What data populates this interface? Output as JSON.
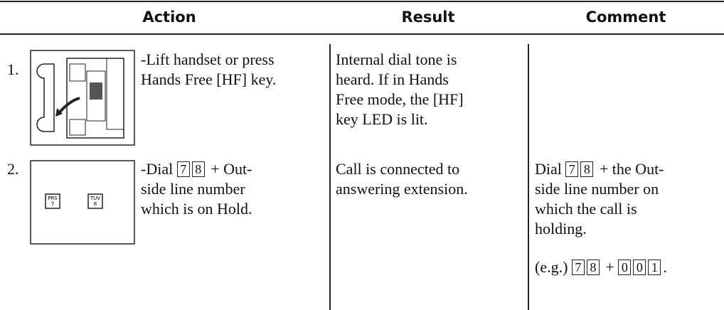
{
  "header": {
    "columns": [
      "Action",
      "Result",
      "Comment"
    ]
  },
  "rows": [
    {
      "number": "1.",
      "action": [
        [
          "-Lift handset or press"
        ],
        [
          "Hands Free [HF] key."
        ]
      ],
      "result": [
        [
          "Internal dial tone is"
        ],
        [
          "heard. If in Hands"
        ],
        [
          "Free mode, the [HF]"
        ],
        [
          "key LED is lit."
        ]
      ]
    },
    {
      "number": "2.",
      "icon_keys": [
        {
          "letters": "PRS",
          "digit": "7"
        },
        {
          "letters": "TUV",
          "digit": "8"
        }
      ],
      "action": [
        [
          "-Dial ",
          {
            "key": "7"
          },
          {
            "key": "8"
          },
          " + Out-"
        ],
        [
          "side line number"
        ],
        [
          "which is on Hold."
        ]
      ],
      "result": [
        [
          "Call is connected to"
        ],
        [
          "answering extension."
        ]
      ],
      "comment": [
        [
          "Dial ",
          {
            "key": "7"
          },
          {
            "key": "8"
          },
          " + the Out-"
        ],
        [
          "side line number on"
        ],
        [
          "which the call is"
        ],
        [
          "holding."
        ],
        [
          "(e.g.) ",
          {
            "key": "7"
          },
          {
            "key": "8"
          },
          " + ",
          {
            "key": "0"
          },
          {
            "key": "0"
          },
          {
            "key": "1"
          },
          "."
        ]
      ]
    }
  ]
}
